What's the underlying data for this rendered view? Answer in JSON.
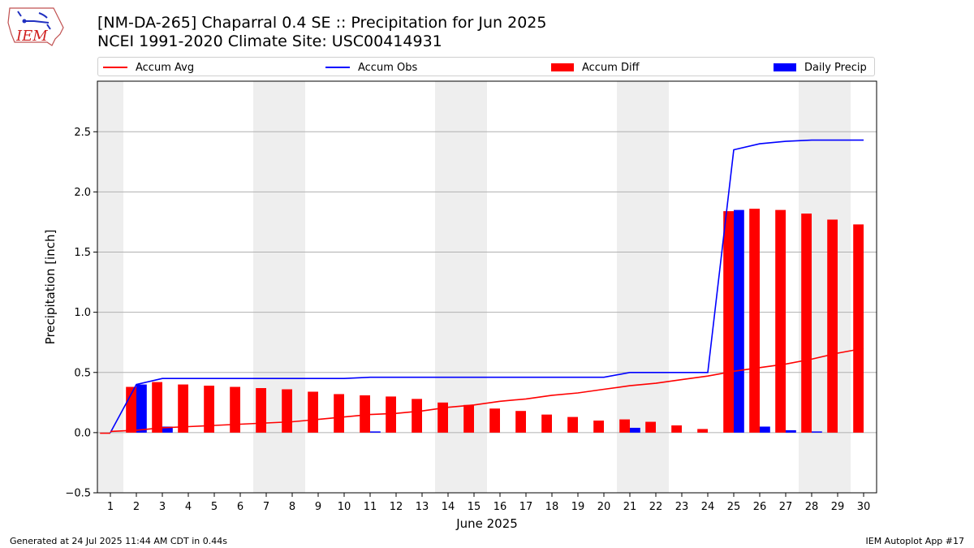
{
  "logo": {
    "text": "IEM",
    "icon": "iem-iowa-logo-icon"
  },
  "title": {
    "line1": "[NM-DA-265] Chaparral 0.4 SE :: Precipitation for Jun 2025",
    "line2": "NCEI 1991-2020 Climate Site: USC00414931"
  },
  "legend": {
    "placement": "top",
    "items": [
      {
        "label": "Accum Avg",
        "kind": "line",
        "color": "#ff0000"
      },
      {
        "label": "Accum Obs",
        "kind": "line",
        "color": "#0000ff"
      },
      {
        "label": "Accum Diff",
        "kind": "bar",
        "color": "#ff0000"
      },
      {
        "label": "Daily Precip",
        "kind": "bar",
        "color": "#0000ff"
      }
    ]
  },
  "footer": {
    "left": "Generated at 24 Jul 2025 11:44 AM CDT in 0.44s",
    "right": "IEM Autoplot App #17"
  },
  "chart_data": {
    "type": "bar",
    "xlabel": "June 2025",
    "ylabel": "Precipitation [inch]",
    "x": [
      1,
      2,
      3,
      4,
      5,
      6,
      7,
      8,
      9,
      10,
      11,
      12,
      13,
      14,
      15,
      16,
      17,
      18,
      19,
      20,
      21,
      22,
      23,
      24,
      25,
      26,
      27,
      28,
      29,
      30
    ],
    "xlim": [
      0.5,
      30.5
    ],
    "ylim": [
      -0.5,
      2.92
    ],
    "yticks": [
      -0.5,
      0.0,
      0.5,
      1.0,
      1.5,
      2.0,
      2.5
    ],
    "ytick_labels": [
      "−0.5",
      "0.0",
      "0.5",
      "1.0",
      "1.5",
      "2.0",
      "2.5"
    ],
    "grid": "horizontal",
    "weekend_shading": [
      [
        0.5,
        1.5
      ],
      [
        6.5,
        8.5
      ],
      [
        13.5,
        15.5
      ],
      [
        20.5,
        22.5
      ],
      [
        27.5,
        29.5
      ]
    ],
    "shade_color": "#eeeeee",
    "series": [
      {
        "name": "Accum Avg",
        "kind": "line",
        "color": "#ff0000",
        "values": [
          0.01,
          0.02,
          0.04,
          0.05,
          0.06,
          0.07,
          0.08,
          0.09,
          0.11,
          0.13,
          0.15,
          0.16,
          0.18,
          0.21,
          0.23,
          0.26,
          0.28,
          0.31,
          0.33,
          0.36,
          0.39,
          0.41,
          0.44,
          0.47,
          0.51,
          0.54,
          0.57,
          0.61,
          0.66,
          0.7
        ]
      },
      {
        "name": "Accum Obs",
        "kind": "line",
        "color": "#0000ff",
        "values": [
          0.0,
          0.4,
          0.45,
          0.45,
          0.45,
          0.45,
          0.45,
          0.45,
          0.45,
          0.45,
          0.46,
          0.46,
          0.46,
          0.46,
          0.46,
          0.46,
          0.46,
          0.46,
          0.46,
          0.46,
          0.5,
          0.5,
          0.5,
          0.5,
          2.35,
          2.4,
          2.42,
          2.43,
          2.43,
          2.43
        ]
      },
      {
        "name": "Accum Diff",
        "kind": "bar",
        "color": "#ff0000",
        "values": [
          -0.01,
          0.38,
          0.42,
          0.4,
          0.39,
          0.38,
          0.37,
          0.36,
          0.34,
          0.32,
          0.31,
          0.3,
          0.28,
          0.25,
          0.23,
          0.2,
          0.18,
          0.15,
          0.13,
          0.1,
          0.11,
          0.09,
          0.06,
          0.03,
          1.84,
          1.86,
          1.85,
          1.82,
          1.77,
          1.73
        ]
      },
      {
        "name": "Daily Precip",
        "kind": "bar",
        "color": "#0000ff",
        "values": [
          0.0,
          0.4,
          0.05,
          0.0,
          0.0,
          0.0,
          0.0,
          0.0,
          0.0,
          0.0,
          0.01,
          0.0,
          0.0,
          0.0,
          0.0,
          0.0,
          0.0,
          0.0,
          0.0,
          0.0,
          0.04,
          0.0,
          0.0,
          0.0,
          1.85,
          0.05,
          0.02,
          0.01,
          0.0,
          0.0
        ]
      }
    ]
  }
}
